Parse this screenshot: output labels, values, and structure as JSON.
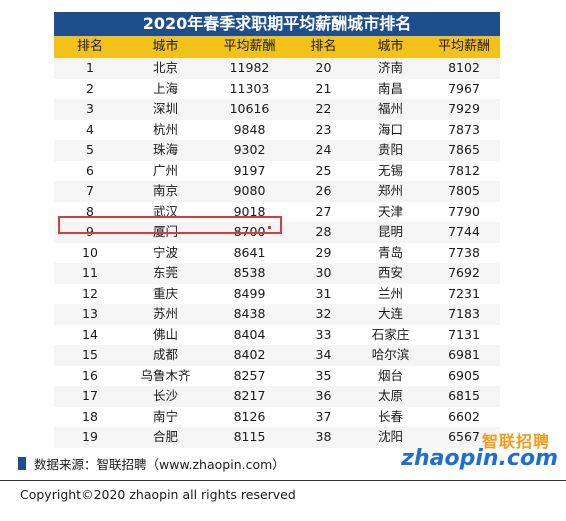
{
  "title": "2020年春季求职期平均薪酬城市排名",
  "headers": [
    "排名",
    "城市",
    "平均薪酬",
    "排名",
    "城市",
    "平均薪酬"
  ],
  "rows": [
    [
      [
        "1",
        "北京",
        "11982"
      ],
      [
        "20",
        "济南",
        "8102"
      ]
    ],
    [
      [
        "2",
        "上海",
        "11303"
      ],
      [
        "21",
        "南昌",
        "7967"
      ]
    ],
    [
      [
        "3",
        "深圳",
        "10616"
      ],
      [
        "22",
        "福州",
        "7929"
      ]
    ],
    [
      [
        "4",
        "杭州",
        "9848"
      ],
      [
        "23",
        "海口",
        "7873"
      ]
    ],
    [
      [
        "5",
        "珠海",
        "9302"
      ],
      [
        "24",
        "贵阳",
        "7865"
      ]
    ],
    [
      [
        "6",
        "广州",
        "9197"
      ],
      [
        "25",
        "无锡",
        "7812"
      ]
    ],
    [
      [
        "7",
        "南京",
        "9080"
      ],
      [
        "26",
        "郑州",
        "7805"
      ]
    ],
    [
      [
        "8",
        "武汉",
        "9018"
      ],
      [
        "27",
        "天津",
        "7790"
      ]
    ],
    [
      [
        "9",
        "厦门",
        "8700"
      ],
      [
        "28",
        "昆明",
        "7744"
      ]
    ],
    [
      [
        "10",
        "宁波",
        "8641"
      ],
      [
        "29",
        "青岛",
        "7738"
      ]
    ],
    [
      [
        "11",
        "东莞",
        "8538"
      ],
      [
        "30",
        "西安",
        "7692"
      ]
    ],
    [
      [
        "12",
        "重庆",
        "8499"
      ],
      [
        "31",
        "兰州",
        "7231"
      ]
    ],
    [
      [
        "13",
        "苏州",
        "8438"
      ],
      [
        "32",
        "大连",
        "7183"
      ]
    ],
    [
      [
        "14",
        "佛山",
        "8404"
      ],
      [
        "33",
        "石家庄",
        "7131"
      ]
    ],
    [
      [
        "15",
        "成都",
        "8402"
      ],
      [
        "34",
        "哈尔滨",
        "6981"
      ]
    ],
    [
      [
        "16",
        "乌鲁木齐",
        "8257"
      ],
      [
        "35",
        "烟台",
        "6905"
      ]
    ],
    [
      [
        "17",
        "长沙",
        "8217"
      ],
      [
        "36",
        "太原",
        "6815"
      ]
    ],
    [
      [
        "18",
        "南宁",
        "8126"
      ],
      [
        "37",
        "长春",
        "6602"
      ]
    ],
    [
      [
        "19",
        "合肥",
        "8115"
      ],
      [
        "38",
        "沈阳",
        "6567"
      ]
    ]
  ],
  "highlight": {
    "rank": "9"
  },
  "source_text": "数据来源：智联招聘（www.zhaopin.com）",
  "logo": {
    "top": "智联招聘",
    "bottom": "zhaopin.com"
  },
  "copyright": "Copyright©2020 zhaopin all rights reserved"
}
